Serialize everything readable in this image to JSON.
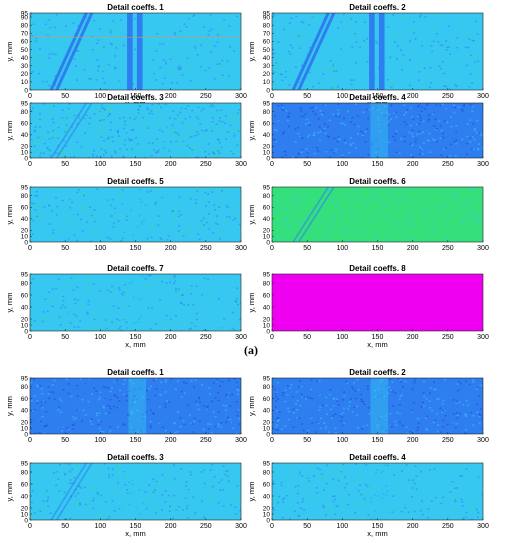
{
  "subfigure_labels": [
    "(a)"
  ],
  "heatmap_colors": {
    "dark": "#1f3fd8",
    "medium": "#2f7ef0",
    "cyan": "#36c8f0",
    "green": "#34e07a",
    "magenta": "#f000f0"
  },
  "chart_data": [
    {
      "type": "heatmap",
      "title": "Detail coeffs. 1",
      "xlabel": "x, mm",
      "ylabel": "y, mm",
      "xlim": [
        0,
        300
      ],
      "ylim": [
        0,
        95
      ],
      "xticks": [
        0,
        50,
        100,
        150,
        200,
        250,
        300
      ],
      "yticks": [
        0,
        10,
        20,
        30,
        40,
        50,
        60,
        70,
        80,
        90,
        95
      ],
      "base_color": "cyan",
      "features": [
        "diagonal-line",
        "vertical-bands",
        "horizontal-line"
      ]
    },
    {
      "type": "heatmap",
      "title": "Detail coeffs. 2",
      "xlabel": "x, mm",
      "ylabel": "y, mm",
      "xlim": [
        0,
        300
      ],
      "ylim": [
        0,
        95
      ],
      "xticks": [
        0,
        50,
        100,
        150,
        200,
        250,
        300
      ],
      "yticks": [
        0,
        10,
        20,
        30,
        40,
        50,
        60,
        70,
        80,
        90,
        95
      ],
      "base_color": "cyan",
      "features": [
        "diagonal-line",
        "vertical-bands"
      ]
    },
    {
      "type": "heatmap",
      "title": "Detail coeffs. 3",
      "xlabel": "",
      "ylabel": "y, mm",
      "xlim": [
        0,
        300
      ],
      "ylim": [
        0,
        95
      ],
      "xticks": [
        0,
        50,
        100,
        150,
        200,
        250,
        300
      ],
      "yticks": [
        0,
        10,
        20,
        30,
        40,
        50,
        60,
        70,
        80,
        90,
        95
      ],
      "base_color": "cyan",
      "features": [
        "diagonal-line-faint",
        "noise"
      ]
    },
    {
      "type": "heatmap",
      "title": "Detail coeffs. 4",
      "xlabel": "",
      "ylabel": "y, mm",
      "xlim": [
        0,
        300
      ],
      "ylim": [
        0,
        95
      ],
      "xticks": [
        0,
        50,
        100,
        150,
        200,
        250,
        300
      ],
      "yticks": [
        0,
        10,
        20,
        30,
        40,
        50,
        60,
        70,
        80,
        90,
        95
      ],
      "base_color": "medium",
      "features": [
        "center-band-light"
      ]
    },
    {
      "type": "heatmap",
      "title": "Detail coeffs. 5",
      "xlabel": "",
      "ylabel": "y, mm",
      "xlim": [
        0,
        300
      ],
      "ylim": [
        0,
        95
      ],
      "xticks": [
        0,
        50,
        100,
        150,
        200,
        250,
        300
      ],
      "yticks": [
        0,
        10,
        20,
        30,
        40,
        50,
        60,
        70,
        80,
        90,
        95
      ],
      "base_color": "cyan",
      "features": [
        "center-band-light"
      ]
    },
    {
      "type": "heatmap",
      "title": "Detail coeffs. 6",
      "xlabel": "",
      "ylabel": "y, mm",
      "xlim": [
        0,
        300
      ],
      "ylim": [
        0,
        95
      ],
      "xticks": [
        0,
        50,
        100,
        150,
        200,
        250,
        300
      ],
      "yticks": [
        0,
        10,
        20,
        30,
        40,
        50,
        60,
        70,
        80,
        90,
        95
      ],
      "base_color": "green",
      "features": [
        "diagonal-line-faint",
        "noise"
      ]
    },
    {
      "type": "heatmap",
      "title": "Detail coeffs. 7",
      "xlabel": "x, mm",
      "ylabel": "y, mm",
      "xlim": [
        0,
        300
      ],
      "ylim": [
        0,
        95
      ],
      "xticks": [
        0,
        50,
        100,
        150,
        200,
        250,
        300
      ],
      "yticks": [
        0,
        10,
        20,
        30,
        40,
        50,
        60,
        70,
        80,
        90,
        95
      ],
      "base_color": "cyan",
      "features": [
        "center-band-light"
      ]
    },
    {
      "type": "heatmap",
      "title": "Detail coeffs. 8",
      "xlabel": "x, mm",
      "ylabel": "y, mm",
      "xlim": [
        0,
        300
      ],
      "ylim": [
        0,
        95
      ],
      "xticks": [
        0,
        50,
        100,
        150,
        200,
        250,
        300
      ],
      "yticks": [
        0,
        10,
        20,
        30,
        40,
        50,
        60,
        70,
        80,
        90,
        95
      ],
      "base_color": "magenta",
      "features": [
        "uniform"
      ]
    },
    {
      "type": "heatmap",
      "title": "Detail coeffs. 1",
      "xlabel": "",
      "ylabel": "y, mm",
      "xlim": [
        0,
        300
      ],
      "ylim": [
        0,
        95
      ],
      "xticks": [
        0,
        50,
        100,
        150,
        200,
        250,
        300
      ],
      "yticks": [
        0,
        10,
        20,
        30,
        40,
        50,
        60,
        70,
        80,
        90,
        95
      ],
      "base_color": "medium",
      "features": [
        "diagonal-line",
        "center-band-light"
      ]
    },
    {
      "type": "heatmap",
      "title": "Detail coeffs. 2",
      "xlabel": "",
      "ylabel": "y, mm",
      "xlim": [
        0,
        300
      ],
      "ylim": [
        0,
        95
      ],
      "xticks": [
        0,
        50,
        100,
        150,
        200,
        250,
        300
      ],
      "yticks": [
        0,
        10,
        20,
        30,
        40,
        50,
        60,
        70,
        80,
        90,
        95
      ],
      "base_color": "medium",
      "features": [
        "diagonal-line",
        "center-band-light"
      ]
    },
    {
      "type": "heatmap",
      "title": "Detail coeffs. 3",
      "xlabel": "x, mm",
      "ylabel": "y, mm",
      "xlim": [
        0,
        300
      ],
      "ylim": [
        0,
        95
      ],
      "xticks": [
        0,
        50,
        100,
        150,
        200,
        250,
        300
      ],
      "yticks": [
        0,
        10,
        20,
        30,
        40,
        50,
        60,
        70,
        80,
        90,
        95
      ],
      "base_color": "cyan",
      "features": [
        "diagonal-line-faint",
        "center-band-light"
      ]
    },
    {
      "type": "heatmap",
      "title": "Detail coeffs. 4",
      "xlabel": "x, mm",
      "ylabel": "y, mm",
      "xlim": [
        0,
        300
      ],
      "ylim": [
        0,
        95
      ],
      "xticks": [
        0,
        50,
        100,
        150,
        200,
        250,
        300
      ],
      "yticks": [
        0,
        10,
        20,
        30,
        40,
        50,
        60,
        70,
        80,
        90,
        95
      ],
      "base_color": "cyan",
      "features": [
        "center-band-light"
      ]
    }
  ]
}
